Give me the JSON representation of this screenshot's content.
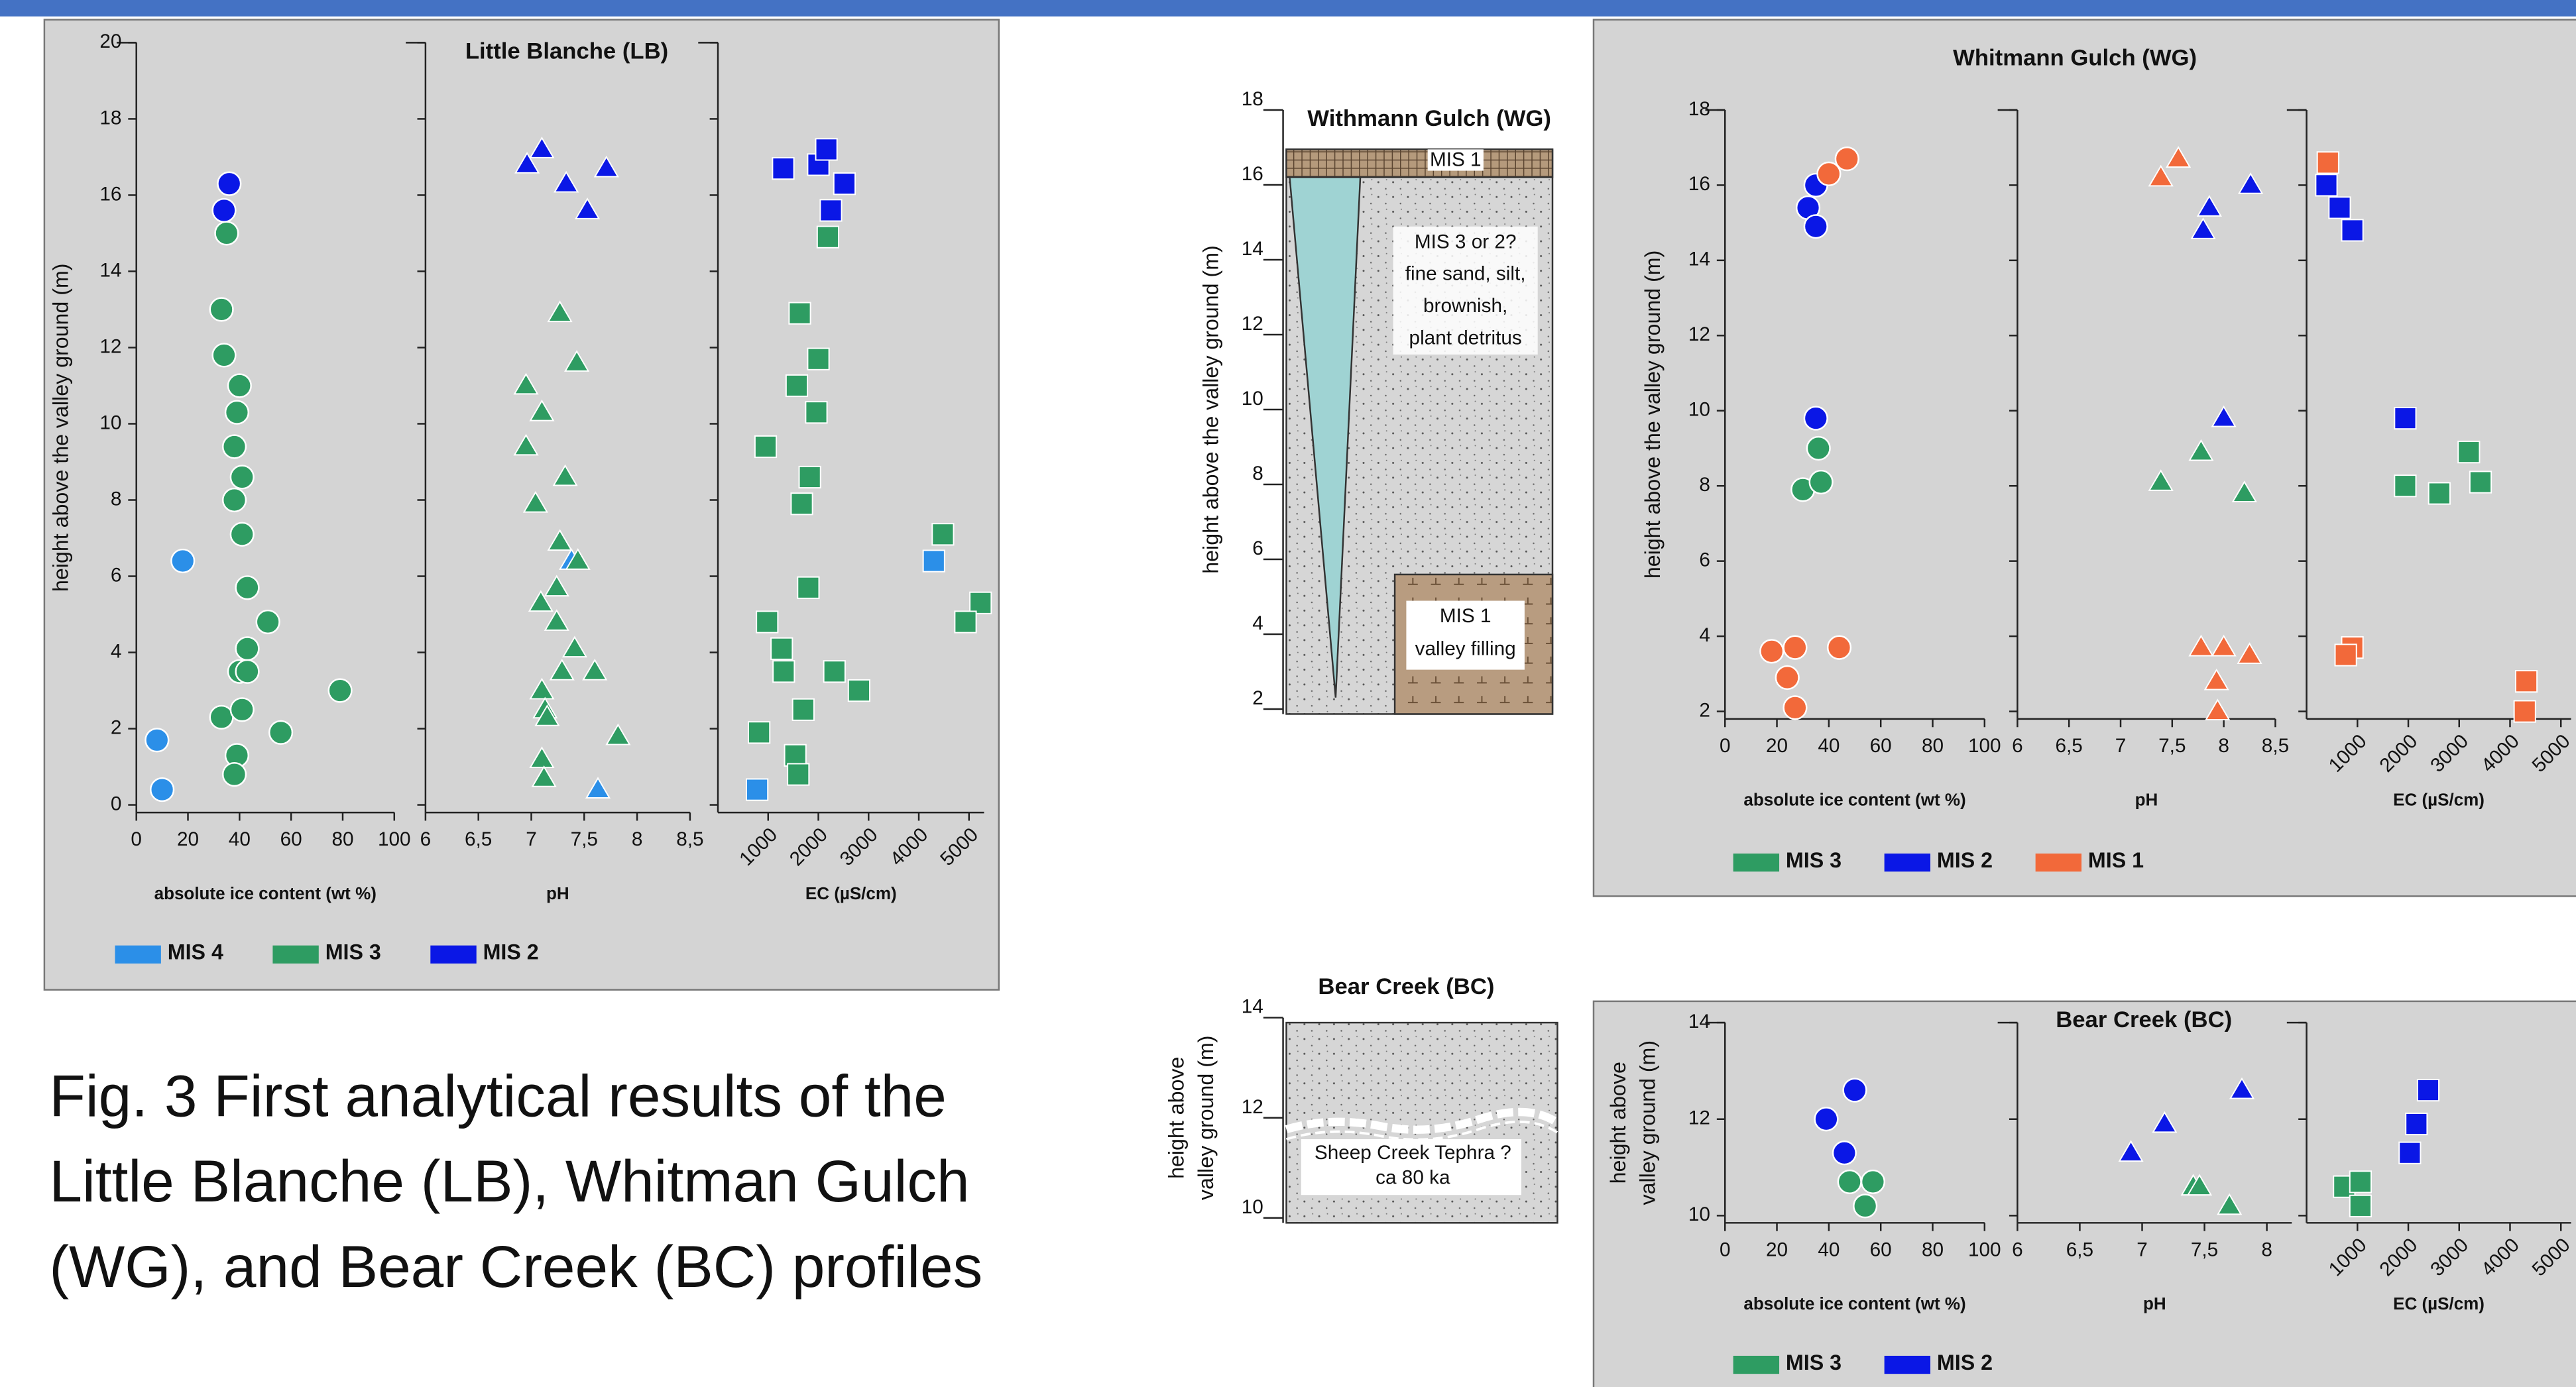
{
  "caption": [
    "Fig. 3 First analytical results of the",
    "Little Blanche (LB), Whitman Gulch",
    "(WG),  and Bear Creek (BC) profiles"
  ],
  "profiles": [
    {
      "title": "Withmann Gulch (WG)",
      "ylabel": [
        "height above the valley ground (m)"
      ],
      "ylim": [
        2,
        18
      ],
      "yticks": [
        2,
        4,
        6,
        8,
        10,
        12,
        14,
        16,
        18
      ],
      "labels": [
        [
          "MIS 1"
        ],
        [
          "MIS 3 or 2?",
          "fine sand, silt,",
          "brownish,",
          "plant detritus"
        ],
        [
          "MIS 1",
          "valley filling"
        ]
      ]
    },
    {
      "title": "Bear Creek (BC)",
      "ylabel": [
        "height above",
        "valley ground (m)"
      ],
      "ylim": [
        10,
        14
      ],
      "yticks": [
        10,
        12,
        14
      ],
      "labels": [
        [
          "Sheep Creek Tephra ?",
          "ca 80 ka"
        ]
      ]
    }
  ],
  "chart_data": [
    {
      "type": "scatter",
      "title": "Little Blanche (LB)",
      "ylabel": [
        "height above the valley ground (m)"
      ],
      "ylim": [
        -0.2,
        20
      ],
      "yticks": [
        0,
        2,
        4,
        6,
        8,
        10,
        12,
        14,
        16,
        18,
        20
      ],
      "series": [
        {
          "name": "MIS 4",
          "color": "#2b8fe8"
        },
        {
          "name": "MIS 3",
          "color": "#2e9c62"
        },
        {
          "name": "MIS 2",
          "color": "#0a17e6"
        }
      ],
      "subplots": [
        {
          "xlabel": "absolute ice content (wt %)",
          "xlim": [
            0,
            100
          ],
          "xticks": [
            0,
            20,
            40,
            60,
            80,
            100
          ],
          "marker": "circle",
          "series": [
            {
              "x": [
                18,
                8,
                10
              ],
              "y": [
                6.4,
                1.7,
                0.4
              ]
            },
            {
              "x": [
                35,
                33,
                34,
                40,
                39,
                38,
                38,
                41,
                41,
                43,
                51,
                43,
                40,
                43,
                33,
                41,
                56,
                39,
                38,
                79
              ],
              "y": [
                15,
                13,
                11.8,
                11,
                10.3,
                9.4,
                8,
                8.6,
                7.1,
                5.7,
                4.8,
                4.1,
                3.5,
                3.5,
                2.3,
                2.5,
                1.9,
                1.3,
                0.8,
                3.0
              ]
            },
            {
              "x": [
                36,
                34
              ],
              "y": [
                16.3,
                15.6
              ]
            }
          ]
        },
        {
          "xlabel": "pH",
          "xlim": [
            6,
            8.5
          ],
          "xticks": [
            6,
            {
              "value": 6.5,
              "label": "6,5"
            },
            7,
            {
              "value": 7.5,
              "label": "7,5"
            },
            8,
            {
              "value": 8.5,
              "label": "8,5"
            }
          ],
          "marker": "triangle",
          "series": [
            {
              "x": [
                7.38,
                7.63
              ],
              "y": [
                6.4,
                0.4
              ]
            },
            {
              "x": [
                7.27,
                7.43,
                6.95,
                7.1,
                6.95,
                7.32,
                7.04,
                7.27,
                7.44,
                7.24,
                7.09,
                7.24,
                7.41,
                7.6,
                7.29,
                7.1,
                7.13,
                7.15,
                7.82,
                7.1,
                7.12
              ],
              "y": [
                12.9,
                11.6,
                11,
                10.3,
                9.4,
                8.6,
                7.9,
                6.9,
                6.4,
                5.7,
                5.3,
                4.8,
                4.1,
                3.5,
                3.5,
                3.0,
                2.5,
                2.3,
                1.8,
                1.2,
                0.7
              ]
            },
            {
              "x": [
                6.96,
                7.1,
                7.33,
                7.53,
                7.71
              ],
              "y": [
                16.8,
                17.2,
                16.3,
                15.6,
                16.7
              ]
            }
          ]
        },
        {
          "xlabel": "EC (µS/cm)",
          "xlim": [
            0,
            5300
          ],
          "xticks": [
            1000,
            2000,
            3000,
            4000,
            5000
          ],
          "marker": "square",
          "series": [
            {
              "x": [
                4300,
                780
              ],
              "y": [
                6.4,
                0.4
              ]
            },
            {
              "x": [
                2190,
                1630,
                2000,
                1570,
                1960,
                950,
                1830,
                1670,
                4480,
                1800,
                5230,
                4930,
                980,
                1270,
                1310,
                2320,
                2810,
                1700,
                820,
                1540,
                1600
              ],
              "y": [
                14.9,
                12.9,
                11.7,
                11,
                10.3,
                9.4,
                8.6,
                7.9,
                7.1,
                5.7,
                5.3,
                4.8,
                4.8,
                4.1,
                3.5,
                3.5,
                3.0,
                2.5,
                1.9,
                1.3,
                0.8
              ]
            },
            {
              "x": [
                1300,
                2000,
                2160,
                2520,
                2250
              ],
              "y": [
                16.7,
                16.8,
                17.2,
                16.3,
                15.6
              ]
            }
          ]
        }
      ]
    },
    {
      "type": "scatter",
      "title": "Whitmann Gulch (WG)",
      "ylabel": [
        "height above the valley ground (m)"
      ],
      "ylim": [
        1.8,
        18
      ],
      "yticks": [
        2,
        4,
        6,
        8,
        10,
        12,
        14,
        16,
        18
      ],
      "series": [
        {
          "name": "MIS 3",
          "color": "#2e9c62"
        },
        {
          "name": "MIS 2",
          "color": "#0a17e6"
        },
        {
          "name": "MIS 1",
          "color": "#f2693a"
        }
      ],
      "subplots": [
        {
          "xlabel": "absolute ice content (wt %)",
          "xlim": [
            0,
            100
          ],
          "xticks": [
            0,
            20,
            40,
            60,
            80,
            100
          ],
          "marker": "circle",
          "series": [
            {
              "x": [
                36,
                30,
                37
              ],
              "y": [
                9,
                7.9,
                8.1
              ]
            },
            {
              "x": [
                35,
                32,
                35,
                35
              ],
              "y": [
                16,
                15.4,
                14.9,
                9.8
              ]
            },
            {
              "x": [
                47,
                40,
                18,
                27,
                24,
                27,
                44
              ],
              "y": [
                16.7,
                16.3,
                3.6,
                3.7,
                2.9,
                2.1,
                3.7
              ]
            }
          ]
        },
        {
          "xlabel": "pH",
          "xlim": [
            6,
            8.5
          ],
          "xticks": [
            6,
            {
              "value": 6.5,
              "label": "6,5"
            },
            7,
            {
              "value": 7.5,
              "label": "7,5"
            },
            8,
            {
              "value": 8.5,
              "label": "8,5"
            }
          ],
          "marker": "triangle",
          "series": [
            {
              "x": [
                7.78,
                7.39,
                8.2
              ],
              "y": [
                8.9,
                8.1,
                7.8
              ]
            },
            {
              "x": [
                7.86,
                7.8,
                8.26,
                8.0
              ],
              "y": [
                15.4,
                14.8,
                16,
                9.8
              ]
            },
            {
              "x": [
                7.39,
                7.56,
                7.78,
                8.0,
                8.25,
                7.93,
                7.94
              ],
              "y": [
                16.2,
                16.7,
                3.7,
                3.7,
                3.5,
                2.8,
                2.0
              ]
            }
          ]
        },
        {
          "xlabel": "EC (µS/cm)",
          "xlim": [
            0,
            5200
          ],
          "xticks": [
            1000,
            2000,
            3000,
            4000,
            5000
          ],
          "marker": "square",
          "series": [
            {
              "x": [
                1940,
                2610,
                3190,
                3420
              ],
              "y": [
                8,
                7.8,
                8.9,
                8.1
              ]
            },
            {
              "x": [
                390,
                650,
                900,
                1940
              ],
              "y": [
                16,
                15.4,
                14.8,
                9.8
              ]
            },
            {
              "x": [
                420,
                900,
                770,
                4320,
                4290
              ],
              "y": [
                16.6,
                3.7,
                3.5,
                2.8,
                2.0
              ]
            }
          ]
        }
      ]
    },
    {
      "type": "scatter",
      "title": "Bear Creek (BC)",
      "ylabel": [
        "height above",
        "valley ground (m)"
      ],
      "ylim": [
        9.85,
        14
      ],
      "yticks": [
        10,
        12,
        14
      ],
      "series": [
        {
          "name": "MIS 3",
          "color": "#2e9c62"
        },
        {
          "name": "MIS 2",
          "color": "#0a17e6"
        }
      ],
      "subplots": [
        {
          "xlabel": "absolute ice content (wt %)",
          "xlim": [
            0,
            100
          ],
          "xticks": [
            0,
            20,
            40,
            60,
            80,
            100
          ],
          "marker": "circle",
          "series": [
            {
              "x": [
                48,
                57,
                54
              ],
              "y": [
                10.7,
                10.7,
                10.2
              ]
            },
            {
              "x": [
                50,
                39,
                46
              ],
              "y": [
                12.6,
                12,
                11.3
              ]
            }
          ]
        },
        {
          "xlabel": "pH",
          "xlim": [
            6,
            8.2
          ],
          "xticks": [
            6,
            {
              "value": 6.5,
              "label": "6,5"
            },
            7,
            {
              "value": 7.5,
              "label": "7,5"
            },
            8
          ],
          "marker": "triangle",
          "series": [
            {
              "x": [
                7.41,
                7.46,
                7.7
              ],
              "y": [
                10.6,
                10.6,
                10.2
              ]
            },
            {
              "x": [
                6.91,
                7.18,
                7.8
              ],
              "y": [
                11.3,
                11.9,
                12.6
              ]
            }
          ]
        },
        {
          "xlabel": "EC (µS/cm)",
          "xlim": [
            0,
            5200
          ],
          "xticks": [
            1000,
            2000,
            3000,
            4000,
            5000
          ],
          "marker": "square",
          "series": [
            {
              "x": [
                740,
                1060,
                1060
              ],
              "y": [
                10.6,
                10.7,
                10.2
              ]
            },
            {
              "x": [
                2390,
                2160,
                2030
              ],
              "y": [
                12.6,
                11.9,
                11.3
              ]
            }
          ]
        }
      ]
    }
  ]
}
